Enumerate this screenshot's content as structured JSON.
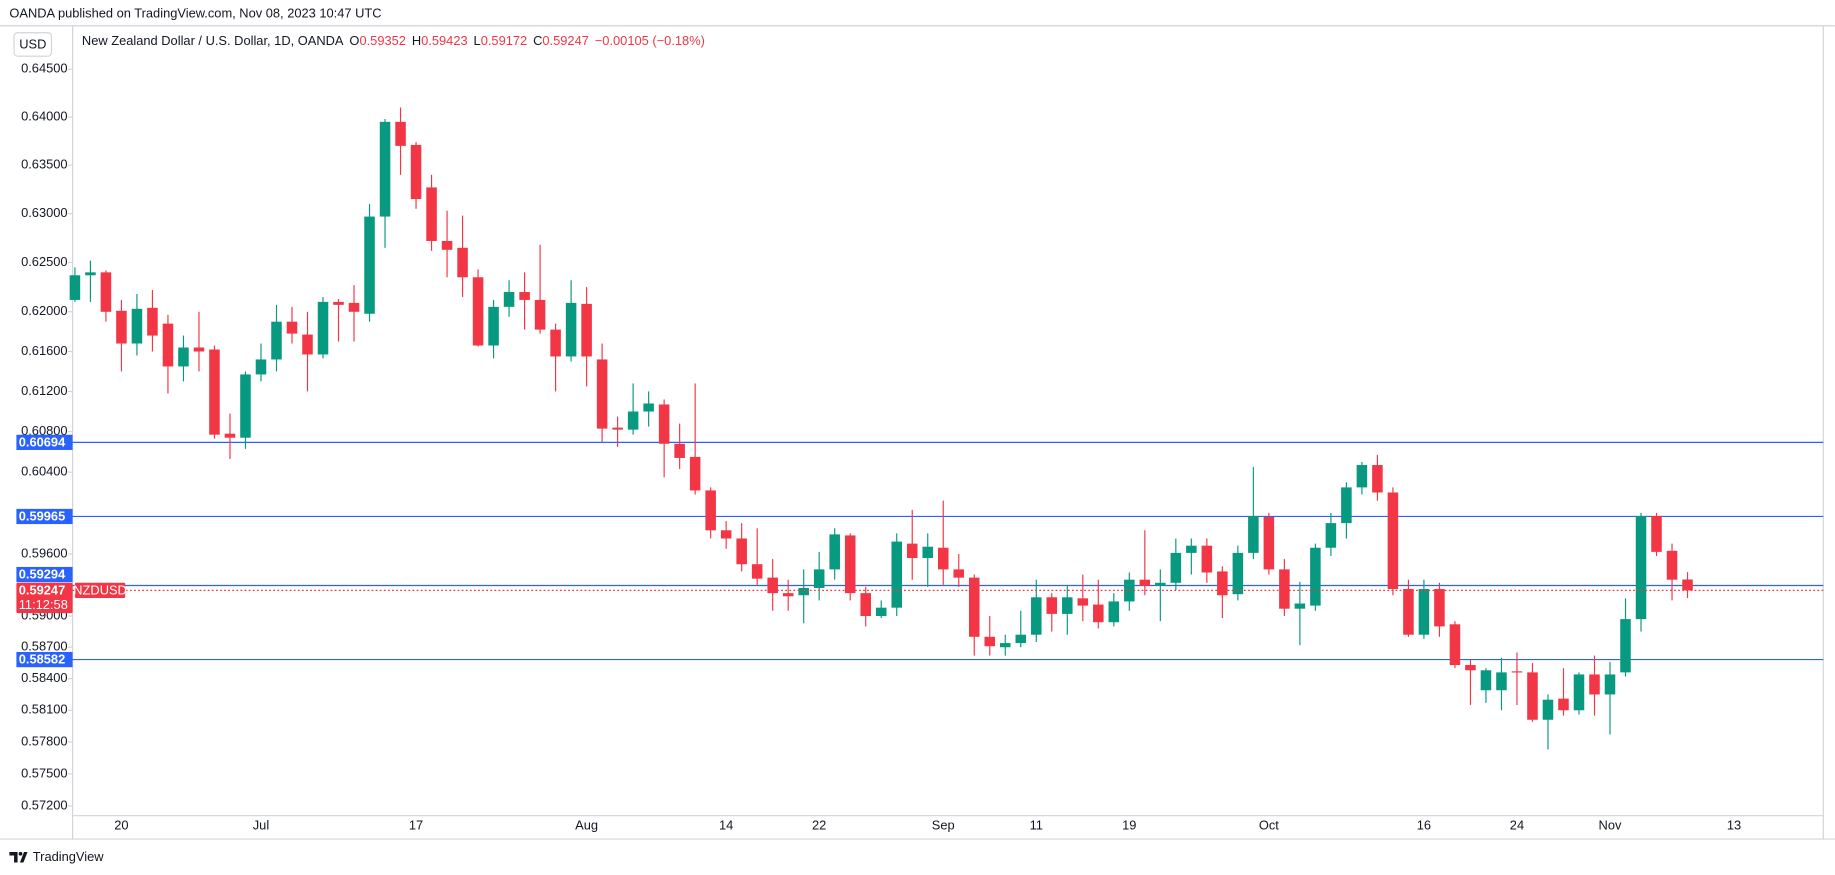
{
  "header": "OANDA published on TradingView.com, Nov 08, 2023 10:47 UTC",
  "footer": "TradingView",
  "chart_data": {
    "type": "candlestick",
    "currency": "USD",
    "legend": {
      "symbol": "New Zealand Dollar / U.S. Dollar, 1D, OANDA",
      "labels": [
        "O",
        "H",
        "L",
        "C"
      ],
      "change": {
        "value": -0.00105,
        "label": "−0.00105"
      },
      "change_pct": "(−0.18%)"
    },
    "symbol_tag": "NZDUSD",
    "countdown": "11:12:58",
    "log_scale": true,
    "grid": false,
    "colors": {
      "up": "#089981",
      "down": "#f23645",
      "level": "#2962ff"
    },
    "ylim": [
      0.5711,
      0.6496
    ],
    "yticks": [
      {
        "value": 0.645,
        "label": "0.64500"
      },
      {
        "value": 0.64,
        "label": "0.64000"
      },
      {
        "value": 0.635,
        "label": "0.63500"
      },
      {
        "value": 0.63,
        "label": "0.63000"
      },
      {
        "value": 0.625,
        "label": "0.62500"
      },
      {
        "value": 0.62,
        "label": "0.62000"
      },
      {
        "value": 0.616,
        "label": "0.61600"
      },
      {
        "value": 0.612,
        "label": "0.61200"
      },
      {
        "value": 0.608,
        "label": "0.60800"
      },
      {
        "value": 0.604,
        "label": "0.60400"
      },
      {
        "value": 0.596,
        "label": "0.59600"
      },
      {
        "value": 0.59,
        "label": "0.59000"
      },
      {
        "value": 0.587,
        "label": "0.58700"
      },
      {
        "value": 0.584,
        "label": "0.58400"
      },
      {
        "value": 0.581,
        "label": "0.58100"
      },
      {
        "value": 0.578,
        "label": "0.57800"
      },
      {
        "value": 0.575,
        "label": "0.57500"
      },
      {
        "value": 0.572,
        "label": "0.57200"
      }
    ],
    "levels": [
      0.60694,
      0.59965,
      0.59294,
      0.58582
    ],
    "categories": [
      null,
      null,
      null,
      "20",
      null,
      null,
      null,
      null,
      null,
      null,
      null,
      null,
      "Jul",
      null,
      null,
      null,
      null,
      null,
      null,
      null,
      null,
      null,
      "17",
      null,
      null,
      null,
      null,
      null,
      null,
      null,
      null,
      null,
      null,
      "Aug",
      null,
      null,
      null,
      null,
      null,
      null,
      null,
      null,
      "14",
      null,
      null,
      null,
      null,
      null,
      "22",
      null,
      null,
      null,
      null,
      null,
      null,
      null,
      "Sep",
      null,
      null,
      null,
      null,
      null,
      "11",
      null,
      null,
      null,
      null,
      null,
      "19",
      null,
      null,
      null,
      null,
      null,
      null,
      null,
      null,
      "Oct",
      null,
      null,
      null,
      null,
      null,
      null,
      null,
      null,
      null,
      "16",
      null,
      null,
      null,
      null,
      null,
      "24",
      null,
      null,
      null,
      null,
      null,
      "Nov",
      null,
      null,
      null,
      null,
      null,
      null,
      null,
      "13"
    ],
    "open": [
      0.6212,
      0.6237,
      0.624,
      0.6201,
      0.6168,
      0.6204,
      0.6188,
      0.6145,
      0.6164,
      0.6162,
      0.6078,
      0.6074,
      0.6137,
      0.6152,
      0.619,
      0.6177,
      0.6157,
      0.621,
      0.6209,
      0.6198,
      0.6297,
      0.6395,
      0.6371,
      0.6327,
      0.6272,
      0.6265,
      0.6235,
      0.6166,
      0.6205,
      0.622,
      0.6212,
      0.6182,
      0.6155,
      0.6208,
      0.6152,
      0.6084,
      0.6082,
      0.61,
      0.6107,
      0.6068,
      0.6055,
      0.6022,
      0.5983,
      0.5975,
      0.595,
      0.5937,
      0.5922,
      0.592,
      0.5927,
      0.5945,
      0.5978,
      0.5922,
      0.59,
      0.5908,
      0.597,
      0.5956,
      0.5966,
      0.5945,
      0.5937,
      0.588,
      0.587,
      0.5874,
      0.5882,
      0.5918,
      0.5902,
      0.5917,
      0.5911,
      0.5894,
      0.5914,
      0.5935,
      0.5929,
      0.5932,
      0.5961,
      0.5968,
      0.5943,
      0.5921,
      0.5961,
      0.5996,
      0.5945,
      0.5907,
      0.591,
      0.5966,
      0.599,
      0.6025,
      0.6047,
      0.602,
      0.5926,
      0.5882,
      0.5926,
      0.5892,
      0.5853,
      0.5829,
      0.5829,
      0.5847,
      0.5846,
      0.5801,
      0.5821,
      0.581,
      0.5844,
      0.5825,
      0.5846,
      0.5897,
      0.5997,
      0.5963,
      0.59352,
      null,
      null,
      null
    ],
    "high": [
      0.6245,
      0.6252,
      0.6242,
      0.6212,
      0.6218,
      0.6222,
      0.6197,
      0.6176,
      0.62,
      0.6166,
      0.6098,
      0.614,
      0.6168,
      0.6207,
      0.6205,
      0.62,
      0.6215,
      0.6213,
      0.6227,
      0.631,
      0.6398,
      0.641,
      0.6374,
      0.634,
      0.6303,
      0.6298,
      0.6243,
      0.6212,
      0.6232,
      0.624,
      0.6268,
      0.6188,
      0.6232,
      0.6225,
      0.6168,
      0.6095,
      0.6128,
      0.612,
      0.6112,
      0.6088,
      0.6128,
      0.6025,
      0.5992,
      0.599,
      0.5985,
      0.5955,
      0.5935,
      0.5945,
      0.5962,
      0.5985,
      0.598,
      0.5928,
      0.5915,
      0.598,
      0.6003,
      0.598,
      0.6012,
      0.596,
      0.594,
      0.59,
      0.5882,
      0.5905,
      0.5935,
      0.5922,
      0.593,
      0.594,
      0.5935,
      0.5922,
      0.5942,
      0.5983,
      0.5945,
      0.5975,
      0.5975,
      0.5975,
      0.5948,
      0.5968,
      0.6045,
      0.6,
      0.5955,
      0.5933,
      0.597,
      0.6,
      0.603,
      0.605,
      0.6057,
      0.6025,
      0.5935,
      0.5935,
      0.5932,
      0.5895,
      0.5858,
      0.585,
      0.586,
      0.5865,
      0.5855,
      0.5825,
      0.585,
      0.5846,
      0.5862,
      0.5856,
      0.5917,
      0.6,
      0.6,
      0.597,
      0.59423,
      null,
      null,
      null
    ],
    "low": [
      0.621,
      0.621,
      0.619,
      0.614,
      0.6156,
      0.616,
      0.6118,
      0.613,
      0.614,
      0.6073,
      0.6053,
      0.6063,
      0.613,
      0.614,
      0.6168,
      0.612,
      0.6153,
      0.617,
      0.617,
      0.619,
      0.6265,
      0.634,
      0.6305,
      0.6262,
      0.6235,
      0.6215,
      0.6165,
      0.6153,
      0.6195,
      0.6182,
      0.6178,
      0.612,
      0.615,
      0.6125,
      0.607,
      0.6065,
      0.6077,
      0.6085,
      0.6035,
      0.6043,
      0.6018,
      0.5975,
      0.5965,
      0.5943,
      0.593,
      0.5905,
      0.5905,
      0.5893,
      0.5915,
      0.5935,
      0.5915,
      0.589,
      0.5898,
      0.59,
      0.5935,
      0.5928,
      0.593,
      0.5928,
      0.5862,
      0.5862,
      0.5862,
      0.587,
      0.5875,
      0.5885,
      0.5882,
      0.5895,
      0.5888,
      0.589,
      0.5905,
      0.592,
      0.5895,
      0.5925,
      0.594,
      0.5932,
      0.5898,
      0.5915,
      0.5955,
      0.594,
      0.59,
      0.5872,
      0.5905,
      0.5958,
      0.5975,
      0.6018,
      0.6012,
      0.592,
      0.588,
      0.5878,
      0.588,
      0.585,
      0.5815,
      0.5817,
      0.581,
      0.5815,
      0.5799,
      0.5773,
      0.5805,
      0.5806,
      0.5805,
      0.5787,
      0.5842,
      0.5885,
      0.5958,
      0.5915,
      0.59172,
      null,
      null,
      null
    ],
    "close": [
      0.6237,
      0.624,
      0.62,
      0.6168,
      0.6203,
      0.6176,
      0.6145,
      0.6164,
      0.616,
      0.6077,
      0.6074,
      0.6137,
      0.6152,
      0.619,
      0.6178,
      0.6157,
      0.621,
      0.6207,
      0.62,
      0.6297,
      0.6395,
      0.637,
      0.6315,
      0.6272,
      0.6263,
      0.6235,
      0.6166,
      0.6205,
      0.622,
      0.6212,
      0.6182,
      0.6155,
      0.6209,
      0.6155,
      0.6083,
      0.6082,
      0.61,
      0.6108,
      0.6068,
      0.6054,
      0.6022,
      0.5983,
      0.5975,
      0.595,
      0.5936,
      0.5922,
      0.5919,
      0.5927,
      0.5945,
      0.5979,
      0.5922,
      0.59,
      0.5908,
      0.5972,
      0.5956,
      0.5967,
      0.5945,
      0.5937,
      0.588,
      0.5871,
      0.5874,
      0.5882,
      0.5918,
      0.5902,
      0.5918,
      0.591,
      0.5894,
      0.5914,
      0.5935,
      0.5929,
      0.5932,
      0.5961,
      0.5968,
      0.5942,
      0.592,
      0.5961,
      0.5997,
      0.5945,
      0.5907,
      0.5912,
      0.5966,
      0.599,
      0.6025,
      0.6047,
      0.602,
      0.5926,
      0.5882,
      0.5926,
      0.589,
      0.5853,
      0.5848,
      0.5848,
      0.5846,
      0.5846,
      0.5801,
      0.582,
      0.581,
      0.5844,
      0.5825,
      0.5844,
      0.5897,
      0.5997,
      0.5962,
      0.5935,
      0.59247,
      null,
      null,
      null
    ]
  }
}
